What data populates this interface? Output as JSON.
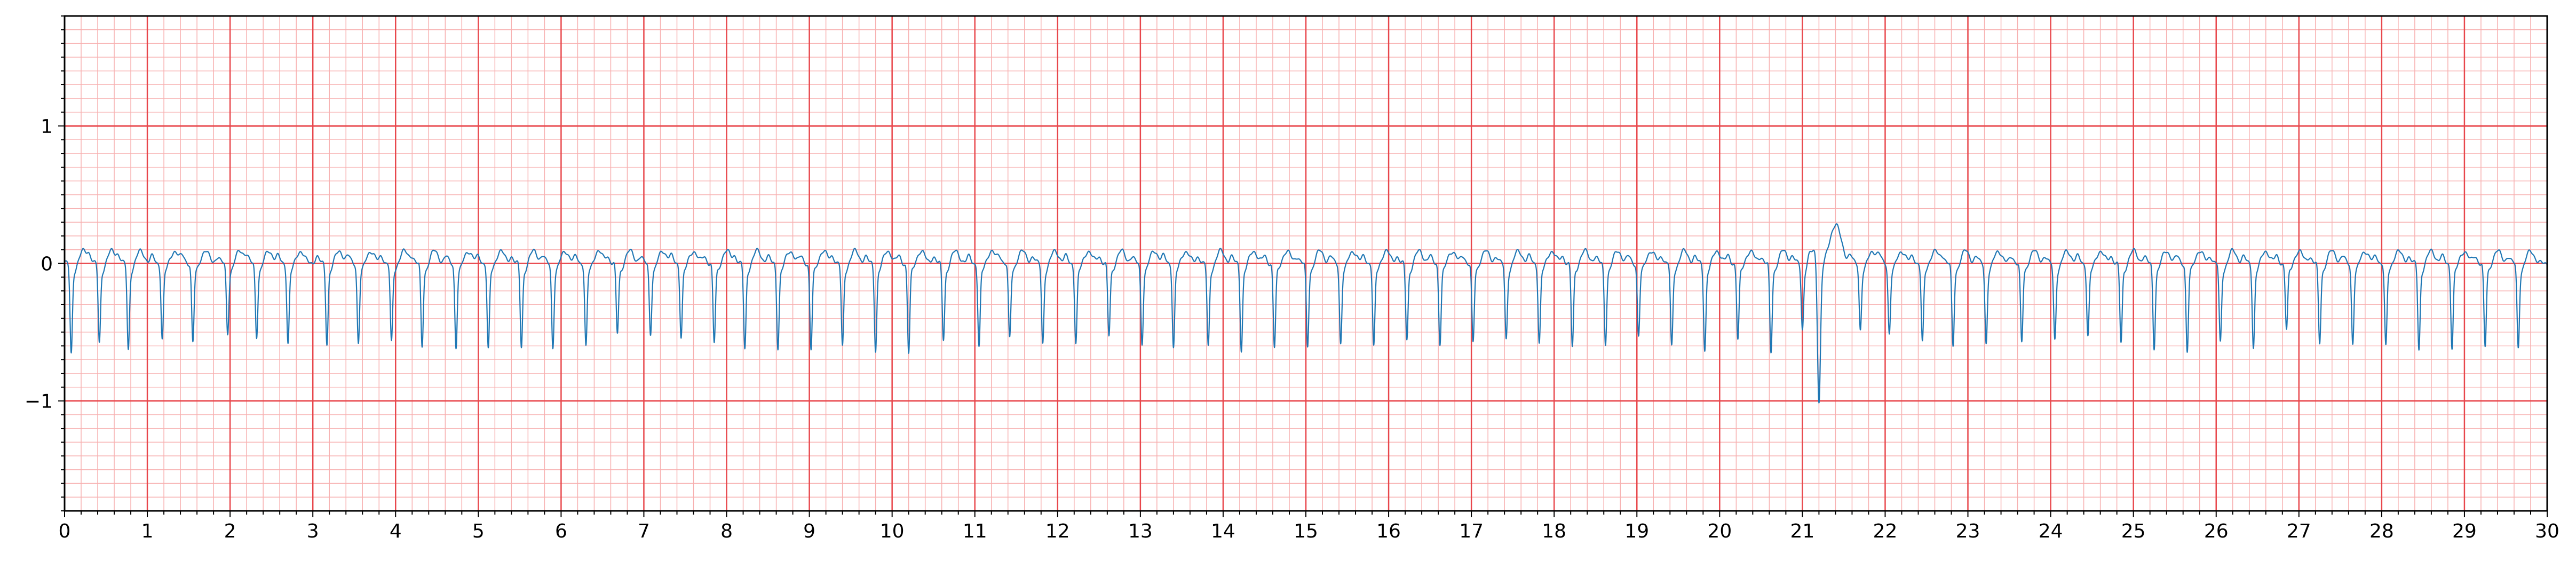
{
  "chart_data": {
    "type": "line",
    "title": "",
    "xlabel": "",
    "ylabel": "",
    "xlim": [
      0,
      30
    ],
    "ylim": [
      -1.8,
      1.8
    ],
    "x_ticks": [
      0,
      1,
      2,
      3,
      4,
      5,
      6,
      7,
      8,
      9,
      10,
      11,
      12,
      13,
      14,
      15,
      16,
      17,
      18,
      19,
      20,
      21,
      22,
      23,
      24,
      25,
      26,
      27,
      28,
      29,
      30
    ],
    "x_tick_labels": [
      "0",
      "1",
      "2",
      "3",
      "4",
      "5",
      "6",
      "7",
      "8",
      "9",
      "10",
      "11",
      "12",
      "13",
      "14",
      "15",
      "16",
      "17",
      "18",
      "19",
      "20",
      "21",
      "22",
      "23",
      "24",
      "25",
      "26",
      "27",
      "28",
      "29",
      "30"
    ],
    "y_ticks": [
      -1,
      0,
      1
    ],
    "y_tick_labels": [
      "−1",
      "0",
      "1"
    ],
    "grid": true,
    "grid_major": {
      "x_step": 1,
      "y_step": 1,
      "color": "#e8474c"
    },
    "grid_minor": {
      "x_step": 0.2,
      "y_step": 0.1,
      "color": "#f7b0b0"
    },
    "series": [
      {
        "color": "#1f77b4",
        "beat_times": [
          0.08,
          0.42,
          0.77,
          1.18,
          1.55,
          1.97,
          2.32,
          2.7,
          3.17,
          3.55,
          3.95,
          4.32,
          4.73,
          5.12,
          5.52,
          5.9,
          6.3,
          6.68,
          7.08,
          7.45,
          7.85,
          8.22,
          8.62,
          9.02,
          9.4,
          9.8,
          10.2,
          10.62,
          11.05,
          11.42,
          11.82,
          12.22,
          12.62,
          13.02,
          13.4,
          13.82,
          14.22,
          14.62,
          15.02,
          15.42,
          15.82,
          16.22,
          16.62,
          17.02,
          17.42,
          17.82,
          18.22,
          18.62,
          19.02,
          19.42,
          19.82,
          20.22,
          20.62,
          21.0,
          21.2,
          21.7,
          22.05,
          22.45,
          22.82,
          23.22,
          23.65,
          24.05,
          24.45,
          24.85,
          25.25,
          25.65,
          26.05,
          26.45,
          26.85,
          27.25,
          27.65,
          28.05,
          28.45,
          28.85,
          29.25,
          29.65
        ],
        "beat_depths": [
          -0.63,
          -0.55,
          -0.6,
          -0.52,
          -0.55,
          -0.48,
          -0.5,
          -0.55,
          -0.55,
          -0.55,
          -0.55,
          -0.58,
          -0.58,
          -0.6,
          -0.58,
          -0.58,
          -0.58,
          -0.48,
          -0.48,
          -0.5,
          -0.55,
          -0.6,
          -0.58,
          -0.6,
          -0.58,
          -0.6,
          -0.62,
          -0.52,
          -0.58,
          -0.52,
          -0.55,
          -0.55,
          -0.5,
          -0.55,
          -0.58,
          -0.58,
          -0.6,
          -0.58,
          -0.58,
          -0.55,
          -0.58,
          -0.52,
          -0.55,
          -0.55,
          -0.52,
          -0.55,
          -0.58,
          -0.55,
          -0.5,
          -0.58,
          -0.6,
          -0.52,
          -0.62,
          -0.45,
          -1.03,
          -0.45,
          -0.48,
          -0.55,
          -0.58,
          -0.55,
          -0.55,
          -0.52,
          -0.5,
          -0.55,
          -0.58,
          -0.62,
          -0.55,
          -0.58,
          -0.45,
          -0.55,
          -0.55,
          -0.58,
          -0.6,
          -0.58,
          -0.58,
          -0.58
        ]
      }
    ]
  }
}
